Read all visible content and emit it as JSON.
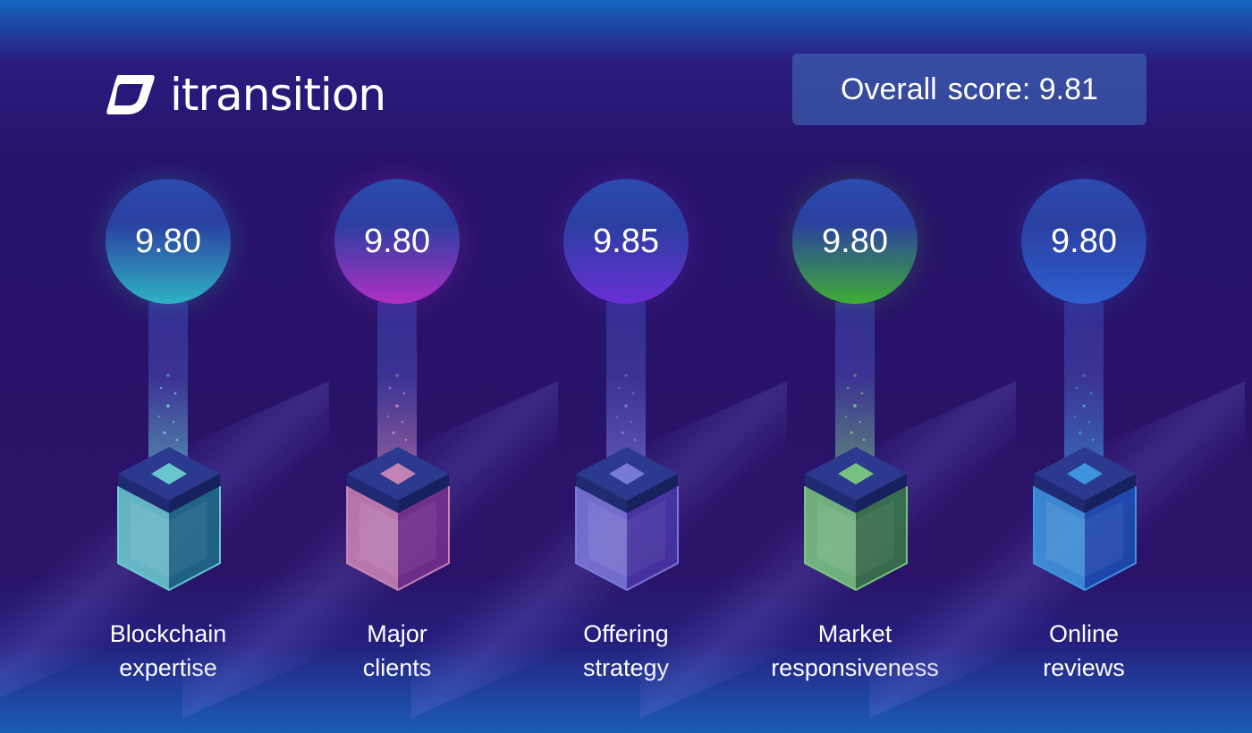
{
  "brand": {
    "name": "itransition",
    "logo_icon": "itransition-logo-icon"
  },
  "overall": {
    "label": "Overall",
    "score_text": "score: 9.81"
  },
  "items": [
    {
      "score": "9.80",
      "label_line1": "Blockchain",
      "label_line2": "expertise",
      "color": "#2fb3c4",
      "light": "#6fd6d6",
      "deep": "#1d6f8a"
    },
    {
      "score": "9.80",
      "label_line1": "Major",
      "label_line2": "clients",
      "color": "#b02fc4",
      "light": "#d48bb8",
      "deep": "#7a2f8e"
    },
    {
      "score": "9.85",
      "label_line1": "Offering",
      "label_line2": "strategy",
      "color": "#6a2fd6",
      "light": "#7f7fe0",
      "deep": "#4a36a8"
    },
    {
      "score": "9.80",
      "label_line1": "Market",
      "label_line2": "responsiveness",
      "color": "#3fae35",
      "light": "#7fd07f",
      "deep": "#3a7a46"
    },
    {
      "score": "9.80",
      "label_line1": "Online",
      "label_line2": "reviews",
      "color": "#2e5fcf",
      "light": "#3f9fe6",
      "deep": "#1d4fb8"
    }
  ]
}
